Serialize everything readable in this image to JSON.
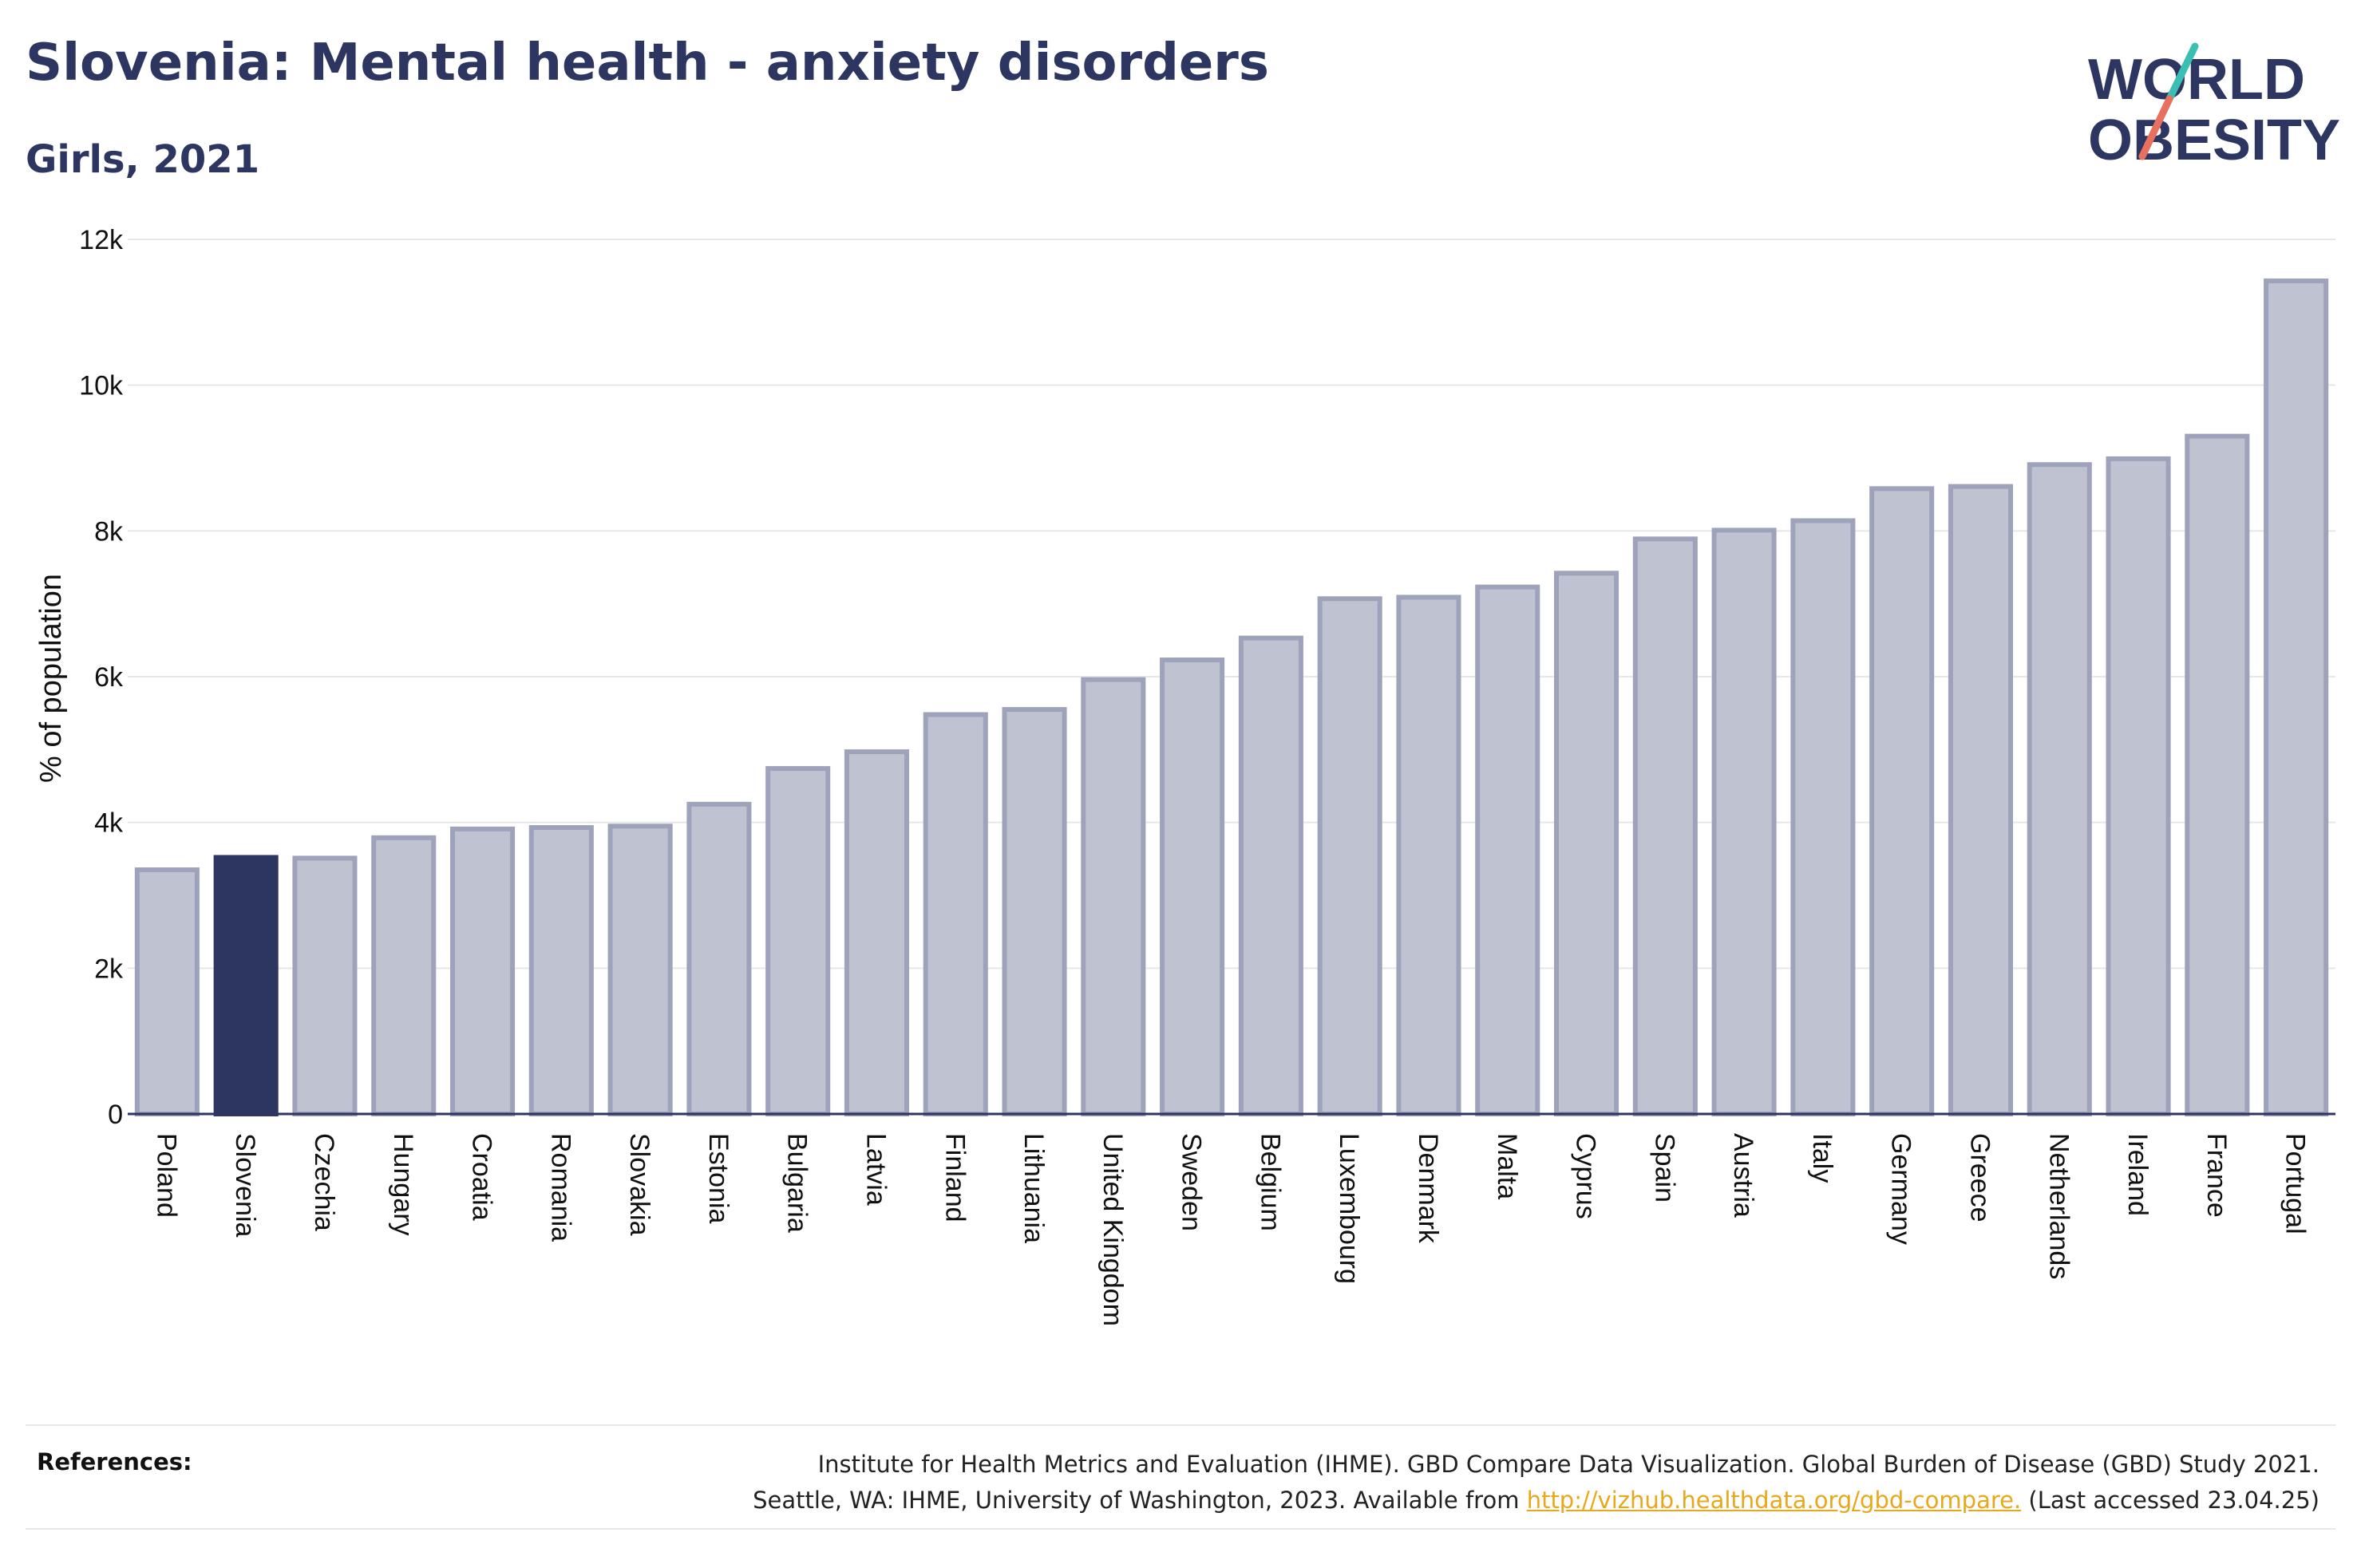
{
  "header": {
    "title": "Slovenia: Mental health - anxiety disorders",
    "subtitle": "Girls, 2021"
  },
  "logo": {
    "line1": "WORLD",
    "line2": "OBESITY"
  },
  "colors": {
    "highlight": "#2d3561",
    "bar_fill": "#bfc3d1",
    "bar_stroke": "#9ea3bb",
    "grid": "#e6e6ea",
    "logo_teal": "#3bbfb4",
    "logo_red": "#e8705f",
    "link": "#e8a81c"
  },
  "chart_data": {
    "type": "bar",
    "title": "Slovenia: Mental health - anxiety disorders",
    "subtitle": "Girls, 2021",
    "xlabel": "",
    "ylabel": "% of population",
    "ylim": [
      0,
      12000
    ],
    "yticks": [
      0,
      2000,
      4000,
      6000,
      8000,
      10000,
      12000
    ],
    "ytick_labels": [
      "0",
      "2k",
      "4k",
      "6k",
      "8k",
      "10k",
      "12k"
    ],
    "grid": true,
    "highlight": "Slovenia",
    "categories": [
      "Poland",
      "Slovenia",
      "Czechia",
      "Hungary",
      "Croatia",
      "Romania",
      "Slovakia",
      "Estonia",
      "Bulgaria",
      "Latvia",
      "Finland",
      "Lithuania",
      "United Kingdom",
      "Sweden",
      "Belgium",
      "Luxembourg",
      "Denmark",
      "Malta",
      "Cyprus",
      "Spain",
      "Austria",
      "Italy",
      "Germany",
      "Greece",
      "Netherlands",
      "Ireland",
      "France",
      "Portugal"
    ],
    "values": [
      3350,
      3520,
      3510,
      3790,
      3910,
      3930,
      3950,
      4250,
      4740,
      4970,
      5480,
      5550,
      5960,
      6230,
      6530,
      7070,
      7090,
      7230,
      7420,
      7890,
      8010,
      8140,
      8580,
      8610,
      8910,
      8990,
      9300,
      11430
    ]
  },
  "footer": {
    "references_label": "References:",
    "ref_line1": "Institute for Health Metrics and Evaluation (IHME). GBD Compare Data Visualization. Global Burden of Disease (GBD) Study 2021.",
    "ref_line2_before": "Seattle, WA: IHME, University of Washington, 2023. Available from ",
    "ref_link": "http://vizhub.healthdata.org/gbd-compare.",
    "ref_line2_after": " (Last accessed 23.04.25)"
  }
}
